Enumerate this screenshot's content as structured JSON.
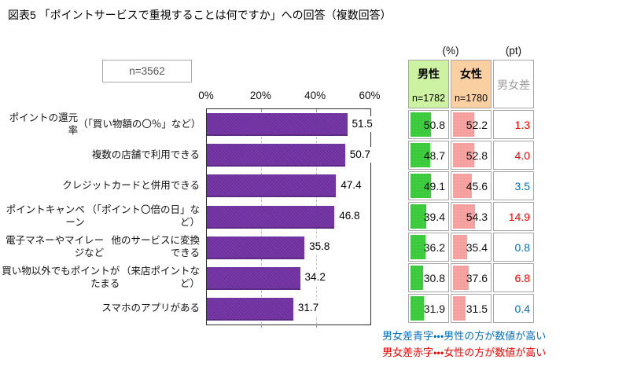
{
  "title": "図表5 「ポイントサービスで重視することは何ですか」への回答（複数回答）",
  "sample_label": "n=3562",
  "chart_data": {
    "type": "bar",
    "orientation": "horizontal",
    "title": "ポイントサービスで重視すること（複数回答）",
    "sample": "n=3562",
    "categories": [
      [
        "ポイントの還元率",
        "（「買い物額の〇％」など）"
      ],
      [
        "複数の店舗で利用できる"
      ],
      [
        "クレジットカードと併用できる"
      ],
      [
        "ポイントキャンペーン",
        "（「ポイント〇倍の日」など）"
      ],
      [
        "電子マネーやマイレージなど",
        "他のサービスに変換できる"
      ],
      [
        "買い物以外でもポイントがたまる",
        "（来店ポイントなど）"
      ],
      [
        "スマホのアプリがある"
      ]
    ],
    "values": [
      51.5,
      50.7,
      47.4,
      46.8,
      35.8,
      34.2,
      31.7
    ],
    "x_ticks": [
      0,
      20,
      40,
      60
    ],
    "x_tick_labels": [
      "0%",
      "20%",
      "40%",
      "60%"
    ],
    "xlim": [
      0,
      60
    ],
    "grid": "dashed vertical at 20% and 40%",
    "bar_color": "#7232A4",
    "gender_series": [
      {
        "name": "男性",
        "n_label": "n=1782",
        "values": [
          50.8,
          48.7,
          49.1,
          39.4,
          36.2,
          30.8,
          31.9
        ]
      },
      {
        "name": "女性",
        "n_label": "n=1780",
        "values": [
          52.2,
          52.8,
          45.6,
          54.3,
          35.4,
          37.6,
          31.5
        ]
      }
    ],
    "gender_diff": {
      "label": "男女差",
      "values": [
        1.3,
        4.0,
        3.5,
        14.9,
        0.8,
        6.8,
        0.4
      ],
      "higher": [
        "female",
        "female",
        "male",
        "female",
        "male",
        "female",
        "male"
      ]
    }
  },
  "table": {
    "pct_unit": "(%)",
    "pt_unit": "(pt)",
    "male_header": "男性",
    "male_n": "n=1782",
    "female_header": "女性",
    "female_n": "n=1780",
    "diff_header": "男女差"
  },
  "notes": [
    {
      "text": "男女差青字・・・男性の方が数値が高い",
      "color_name": "blue"
    },
    {
      "text": "男女差赤字・・・女性の方が数値が高い",
      "color_name": "red"
    }
  ],
  "colors": {
    "bar_purple": "#7232A4",
    "male_header_bg": "#CDF2A2",
    "female_header_bg": "#FAD0A2",
    "male_bar": "#3ECD3E",
    "female_bar": "#F9A2A2",
    "diff_red": "#FF0000",
    "diff_blue": "#0070C0",
    "diff_header_text": "#9B9B9B"
  }
}
